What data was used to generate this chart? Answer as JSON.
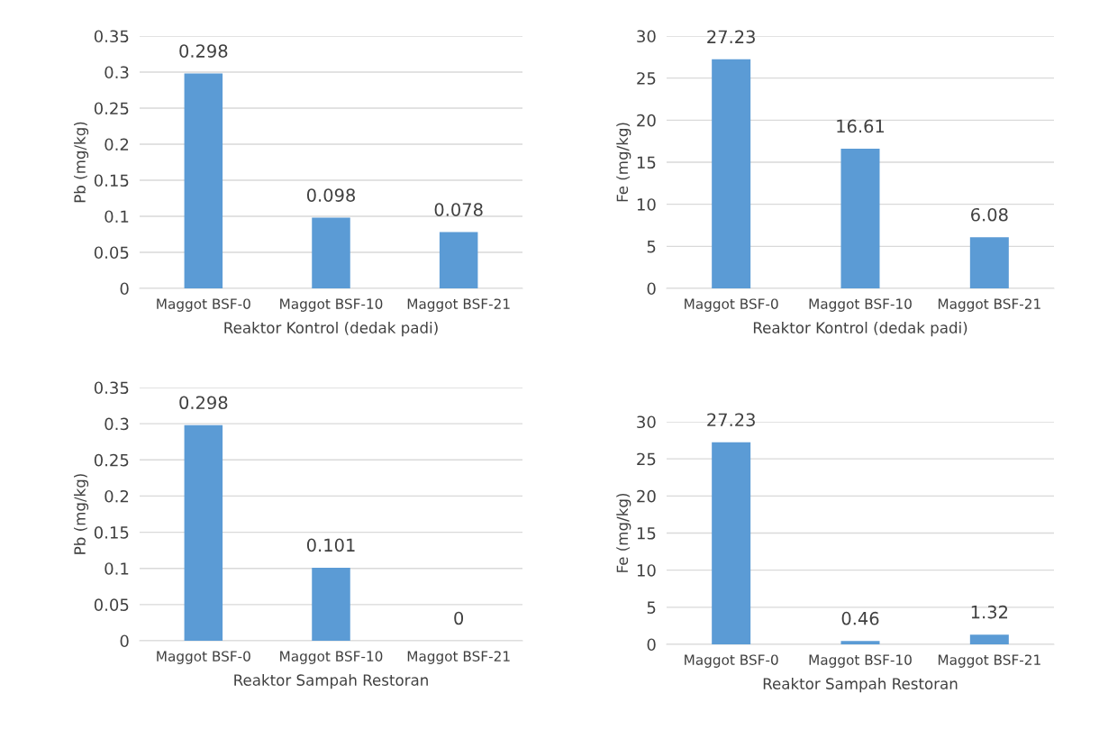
{
  "chart_data": [
    {
      "type": "bar",
      "categories": [
        "Maggot BSF-0",
        "Maggot BSF-10",
        "Maggot BSF-21"
      ],
      "values": [
        0.298,
        0.098,
        0.078
      ],
      "color": "#5b9bd5",
      "xlabel": "Reaktor Kontrol (dedak padi)",
      "ylabel": "Pb (mg/kg)",
      "ylim": [
        0,
        0.35
      ],
      "yticks": [
        0,
        0.05,
        0.1,
        0.15,
        0.2,
        0.25,
        0.3,
        0.35
      ],
      "grid": "y",
      "data_labels": true
    },
    {
      "type": "bar",
      "categories": [
        "Maggot BSF-0",
        "Maggot BSF-10",
        "Maggot BSF-21"
      ],
      "values": [
        27.23,
        16.61,
        6.08
      ],
      "color": "#5b9bd5",
      "xlabel": "Reaktor Kontrol (dedak padi)",
      "ylabel": "Fe (mg/kg)",
      "ylim": [
        0,
        30
      ],
      "yticks": [
        0,
        5,
        10,
        15,
        20,
        25,
        30
      ],
      "grid": "y",
      "data_labels": true
    },
    {
      "type": "bar",
      "categories": [
        "Maggot BSF-0",
        "Maggot BSF-10",
        "Maggot BSF-21"
      ],
      "values": [
        0.298,
        0.101,
        0
      ],
      "color": "#5b9bd5",
      "xlabel": "Reaktor Sampah Restoran",
      "ylabel": "Pb (mg/kg)",
      "ylim": [
        0,
        0.35
      ],
      "yticks": [
        0,
        0.05,
        0.1,
        0.15,
        0.2,
        0.25,
        0.3,
        0.35
      ],
      "grid": "y",
      "data_labels": true
    },
    {
      "type": "bar",
      "categories": [
        "Maggot BSF-0",
        "Maggot BSF-10",
        "Maggot BSF-21"
      ],
      "values": [
        27.23,
        0.46,
        1.32
      ],
      "color": "#5b9bd5",
      "xlabel": "Reaktor Sampah Restoran",
      "ylabel": "Fe (mg/kg)",
      "ylim": [
        0,
        30
      ],
      "yticks": [
        0,
        5,
        10,
        15,
        20,
        25,
        30
      ],
      "grid": "y",
      "data_labels": true
    }
  ]
}
